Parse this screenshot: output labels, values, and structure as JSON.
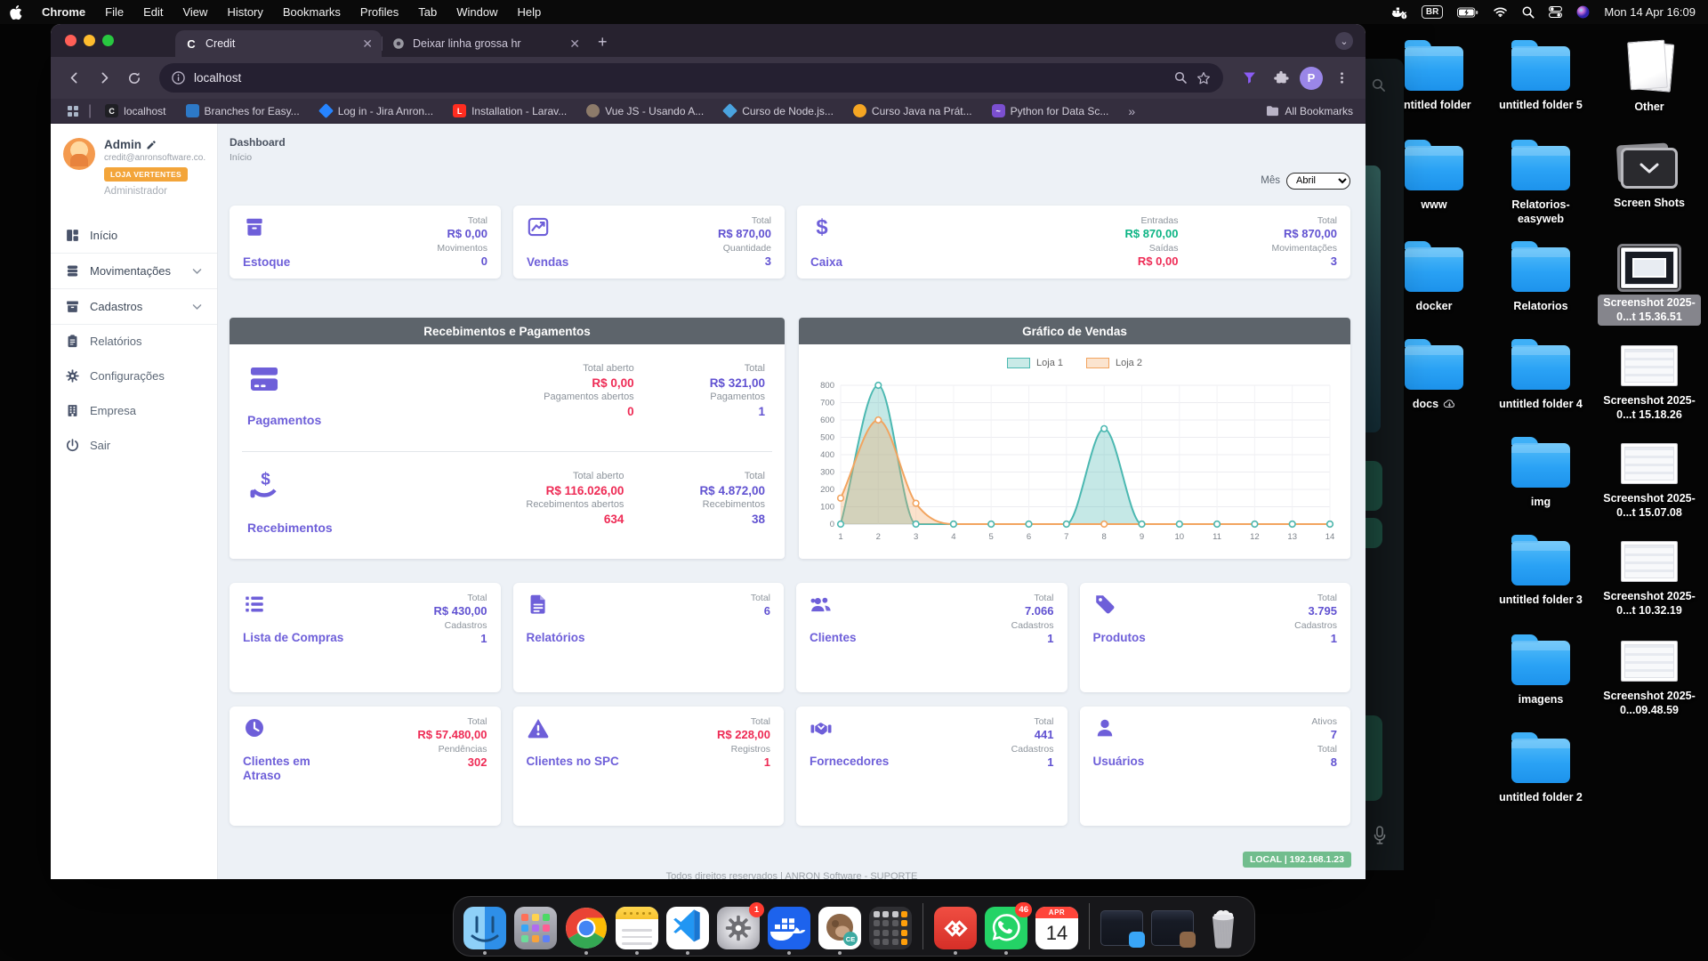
{
  "menu_bar": {
    "app_name": "Chrome",
    "items": [
      "File",
      "Edit",
      "View",
      "History",
      "Bookmarks",
      "Profiles",
      "Tab",
      "Window",
      "Help"
    ],
    "status": {
      "keyboard": "BR",
      "clock": "Mon 14 Apr 16:09"
    }
  },
  "browser": {
    "tabs": [
      {
        "title": "Credit",
        "favicon": "c-letter",
        "active": true
      },
      {
        "title": "Deixar linha grossa hr",
        "favicon": "gear",
        "active": false
      }
    ],
    "address": "localhost",
    "profile_initial": "P",
    "bookmarks": [
      {
        "label": "localhost",
        "icon": "c",
        "color": "#1f1f24"
      },
      {
        "label": "Branches for Easy...",
        "icon": "square",
        "color": "#2d79c7"
      },
      {
        "label": "Log in - Jira Anron...",
        "icon": "diamond",
        "color": "#2684ff"
      },
      {
        "label": "Installation - Larav...",
        "icon": "laravel",
        "color": "#ff2d20"
      },
      {
        "label": "Vue JS - Usando A...",
        "icon": "circle",
        "color": "#8d7b6a"
      },
      {
        "label": "Curso de Node.js...",
        "icon": "diamond",
        "color": "#4aa3df"
      },
      {
        "label": "Curso Java na Prát...",
        "icon": "bell",
        "color": "#f5a623"
      },
      {
        "label": "Python for Data Sc...",
        "icon": "python",
        "color": "#7b4fd0"
      }
    ],
    "overflow_chevron": "»",
    "all_bookmarks_label": "All Bookmarks"
  },
  "sidebar": {
    "user": {
      "name": "Admin",
      "email": "credit@anronsoftware.co...",
      "store_badge": "LOJA VERTENTES",
      "role": "Administrador"
    },
    "menu": [
      {
        "label": "Início",
        "icon": "grid",
        "expandable": false,
        "accordion": false
      },
      {
        "label": "Movimentações",
        "icon": "layers",
        "expandable": true,
        "accordion": true
      },
      {
        "label": "Cadastros",
        "icon": "archive",
        "expandable": true,
        "accordion": true
      },
      {
        "label": "Relatórios",
        "icon": "clipboard",
        "expandable": false,
        "accordion": false
      },
      {
        "label": "Configurações",
        "icon": "gear",
        "expandable": false,
        "accordion": false
      },
      {
        "label": "Empresa",
        "icon": "building",
        "expandable": false,
        "accordion": false
      },
      {
        "label": "Sair",
        "icon": "power",
        "expandable": false,
        "accordion": false
      }
    ]
  },
  "page": {
    "title": "Dashboard",
    "subtitle": "Início",
    "month_label": "Mês",
    "month_value": "Abril",
    "footer": "Todos direitos reservados | ANRON Software - SUPORTE",
    "env_badge": "LOCAL | 192.168.1.23"
  },
  "summary_cards": [
    {
      "title": "Estoque",
      "icon": "box",
      "span": 1,
      "stats": [
        [
          {
            "label": "Total",
            "value": "R$ 0,00",
            "tone": "accent"
          },
          {
            "label": "Movimentos",
            "value": "0",
            "tone": "accent"
          }
        ]
      ]
    },
    {
      "title": "Vendas",
      "icon": "chart",
      "span": 1,
      "stats": [
        [
          {
            "label": "Total",
            "value": "R$ 870,00",
            "tone": "accent"
          },
          {
            "label": "Quantidade",
            "value": "3",
            "tone": "accent"
          }
        ]
      ]
    },
    {
      "title": "Caixa",
      "icon": "dollar",
      "span": 1,
      "stats": [
        [
          {
            "label": "Entradas",
            "value": "R$ 870,00",
            "tone": "green"
          },
          {
            "label": "Saídas",
            "value": "R$ 0,00",
            "tone": "red"
          }
        ],
        [
          {
            "label": "Total",
            "value": "R$ 870,00",
            "tone": "accent"
          },
          {
            "label": "Movimentações",
            "value": "3",
            "tone": "accent"
          }
        ]
      ]
    }
  ],
  "payments_panel": {
    "title": "Recebimentos e Pagamentos",
    "rows": [
      {
        "title": "Pagamentos",
        "icon": "card",
        "stats": [
          [
            {
              "label": "Total aberto",
              "value": "R$ 0,00",
              "tone": "red"
            },
            {
              "label": "Pagamentos abertos",
              "value": "0",
              "tone": "red"
            }
          ],
          [
            {
              "label": "Total",
              "value": "R$ 321,00",
              "tone": "accent"
            },
            {
              "label": "Pagamentos",
              "value": "1",
              "tone": "accent"
            }
          ]
        ]
      },
      {
        "title": "Recebimentos",
        "icon": "hand",
        "stats": [
          [
            {
              "label": "Total aberto",
              "value": "R$ 116.026,00",
              "tone": "red"
            },
            {
              "label": "Recebimentos abertos",
              "value": "634",
              "tone": "red"
            }
          ],
          [
            {
              "label": "Total",
              "value": "R$ 4.872,00",
              "tone": "accent"
            },
            {
              "label": "Recebimentos",
              "value": "38",
              "tone": "accent"
            }
          ]
        ]
      }
    ]
  },
  "chart_data": {
    "type": "area",
    "title": "Gráfico de Vendas",
    "x": [
      1,
      2,
      3,
      4,
      5,
      6,
      7,
      8,
      9,
      10,
      11,
      12,
      13,
      14
    ],
    "ylim": [
      0,
      800
    ],
    "ytick": 100,
    "grid": true,
    "legend_position": "top",
    "series": [
      {
        "name": "Loja 1",
        "color": "#4bb8b1",
        "values": [
          0,
          800,
          0,
          0,
          0,
          0,
          0,
          550,
          0,
          0,
          0,
          0,
          0,
          0
        ]
      },
      {
        "name": "Loja 2",
        "color": "#f2a45f",
        "values": [
          150,
          600,
          120,
          0,
          0,
          0,
          0,
          0,
          0,
          0,
          0,
          0,
          0,
          0
        ]
      }
    ]
  },
  "row2_cards": [
    {
      "title": "Lista de Compras",
      "icon": "list",
      "stats": [
        [
          {
            "label": "Total",
            "value": "R$ 430,00",
            "tone": "accent"
          },
          {
            "label": "Cadastros",
            "value": "1",
            "tone": "accent"
          }
        ]
      ]
    },
    {
      "title": "Relatórios",
      "icon": "file",
      "stats": [
        [
          {
            "label": "Total",
            "value": "6",
            "tone": "accent"
          }
        ]
      ]
    },
    {
      "title": "Clientes",
      "icon": "users",
      "stats": [
        [
          {
            "label": "Total",
            "value": "7.066",
            "tone": "accent"
          },
          {
            "label": "Cadastros",
            "value": "1",
            "tone": "accent"
          }
        ]
      ]
    },
    {
      "title": "Produtos",
      "icon": "tag",
      "stats": [
        [
          {
            "label": "Total",
            "value": "3.795",
            "tone": "accent"
          },
          {
            "label": "Cadastros",
            "value": "1",
            "tone": "accent"
          }
        ]
      ]
    }
  ],
  "row3_cards": [
    {
      "title": "Clientes em Atraso",
      "icon": "clock",
      "stats": [
        [
          {
            "label": "Total",
            "value": "R$ 57.480,00",
            "tone": "red"
          },
          {
            "label": "Pendências",
            "value": "302",
            "tone": "red"
          }
        ]
      ]
    },
    {
      "title": "Clientes no SPC",
      "icon": "warn",
      "stats": [
        [
          {
            "label": "Total",
            "value": "R$ 228,00",
            "tone": "red"
          },
          {
            "label": "Registros",
            "value": "1",
            "tone": "red"
          }
        ]
      ]
    },
    {
      "title": "Fornecedores",
      "icon": "shake",
      "stats": [
        [
          {
            "label": "Total",
            "value": "441",
            "tone": "accent"
          },
          {
            "label": "Cadastros",
            "value": "1",
            "tone": "accent"
          }
        ]
      ]
    },
    {
      "title": "Usuários",
      "icon": "user",
      "stats": [
        [
          {
            "label": "Ativos",
            "value": "7",
            "tone": "accent"
          },
          {
            "label": "Total",
            "value": "8",
            "tone": "accent"
          }
        ]
      ]
    }
  ],
  "desktop": {
    "items": [
      {
        "label": "untitled folder",
        "type": "folder",
        "col": 0,
        "row": 0
      },
      {
        "label": "untitled folder 5",
        "type": "folder",
        "col": 1,
        "row": 0
      },
      {
        "label": "Other",
        "type": "documents",
        "col": 2,
        "row": 0
      },
      {
        "label": "www",
        "type": "folder",
        "col": 0,
        "row": 1
      },
      {
        "label": "Relatorios-easyweb",
        "type": "folder",
        "col": 1,
        "row": 1
      },
      {
        "label": "Screen Shots",
        "type": "stack",
        "col": 2,
        "row": 1
      },
      {
        "label": "docker",
        "type": "folder",
        "col": 0,
        "row": 2
      },
      {
        "label": "Relatorios",
        "type": "folder",
        "col": 1,
        "row": 2
      },
      {
        "label": "Screenshot 2025-0...t 15.36.51",
        "type": "screenshot-dark",
        "col": 2,
        "row": 2,
        "selected": true
      },
      {
        "label": "docs",
        "type": "folder",
        "col": 0,
        "row": 3,
        "cloud": true
      },
      {
        "label": "untitled folder 4",
        "type": "folder",
        "col": 1,
        "row": 3
      },
      {
        "label": "Screenshot 2025-0...t 15.18.26",
        "type": "screenshot",
        "col": 2,
        "row": 3
      },
      {
        "label": "img",
        "type": "folder",
        "col": 1,
        "row": 4
      },
      {
        "label": "Screenshot 2025-0...t 15.07.08",
        "type": "screenshot",
        "col": 2,
        "row": 4
      },
      {
        "label": "untitled folder 3",
        "type": "folder",
        "col": 1,
        "row": 5
      },
      {
        "label": "Screenshot 2025-0...t 10.32.19",
        "type": "screenshot",
        "col": 2,
        "row": 5
      },
      {
        "label": "imagens",
        "type": "folder",
        "col": 1,
        "row": 6
      },
      {
        "label": "Screenshot 2025-0...09.48.59",
        "type": "screenshot",
        "col": 2,
        "row": 6
      },
      {
        "label": "untitled folder 2",
        "type": "folder",
        "col": 1,
        "row": 7
      }
    ]
  },
  "dock": {
    "items": [
      {
        "name": "finder",
        "running": true
      },
      {
        "name": "launchpad",
        "running": false
      },
      {
        "name": "chrome",
        "running": true
      },
      {
        "name": "notes",
        "running": true
      },
      {
        "name": "vscode",
        "running": true
      },
      {
        "name": "settings",
        "running": false,
        "badge": "1"
      },
      {
        "name": "docker",
        "running": true
      },
      {
        "name": "dbeaver",
        "running": true
      },
      {
        "name": "calculator",
        "running": false
      },
      {
        "name": "separator"
      },
      {
        "name": "redapp",
        "running": true
      },
      {
        "name": "whatsapp",
        "running": true,
        "badge": "46"
      },
      {
        "name": "calendar",
        "running": false,
        "month": "APR",
        "day": "14"
      },
      {
        "name": "separator"
      },
      {
        "name": "window-thumb-1"
      },
      {
        "name": "window-thumb-2"
      },
      {
        "name": "trash"
      }
    ]
  },
  "colors": {
    "accent": "#6152d1",
    "red": "#ee2b55",
    "green": "#0cb484",
    "panel_header": "#5d646b",
    "store_badge": "#f3a53a",
    "env_badge": "#71bd8d",
    "loja1": "#4bb8b1",
    "loja2": "#f2a45f"
  }
}
